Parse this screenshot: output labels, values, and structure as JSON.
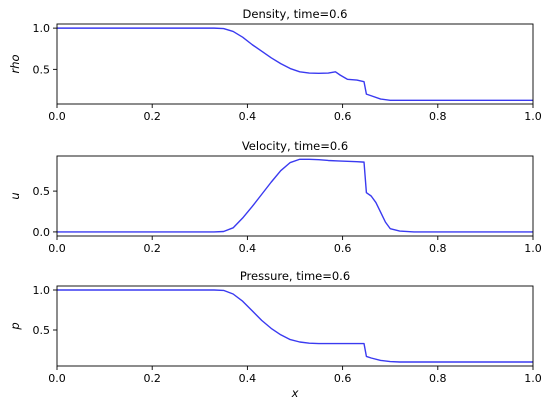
{
  "chart_data": [
    {
      "type": "line",
      "title": "Density, time=0.6",
      "xlabel": "",
      "ylabel": "rho",
      "xlim": [
        0,
        1
      ],
      "ylim": [
        0.08,
        1.05
      ],
      "xticks": [
        "0.0",
        "0.2",
        "0.4",
        "0.6",
        "0.8",
        "1.0"
      ],
      "yticks": [
        "0.5",
        "1.0"
      ],
      "ytick_values": [
        0.5,
        1.0
      ],
      "color": "#3a3af0",
      "series": [
        {
          "x": [
            0.0,
            0.33,
            0.35,
            0.37,
            0.39,
            0.41,
            0.43,
            0.45,
            0.47,
            0.49,
            0.51,
            0.53,
            0.55,
            0.57,
            0.585,
            0.595,
            0.61,
            0.63,
            0.645,
            0.65,
            0.66,
            0.68,
            0.7,
            0.72,
            1.0
          ],
          "y": [
            1.0,
            1.0,
            0.995,
            0.96,
            0.89,
            0.8,
            0.72,
            0.64,
            0.57,
            0.51,
            0.47,
            0.455,
            0.452,
            0.455,
            0.47,
            0.43,
            0.38,
            0.37,
            0.35,
            0.2,
            0.18,
            0.14,
            0.125,
            0.125,
            0.125
          ]
        }
      ]
    },
    {
      "type": "line",
      "title": "Velocity, time=0.6",
      "xlabel": "",
      "ylabel": "u",
      "xlim": [
        0,
        1
      ],
      "ylim": [
        -0.05,
        0.93
      ],
      "xticks": [
        "0.0",
        "0.2",
        "0.4",
        "0.6",
        "0.8",
        "1.0"
      ],
      "yticks": [
        "0.0",
        "0.5"
      ],
      "ytick_values": [
        0.0,
        0.5
      ],
      "color": "#3a3af0",
      "series": [
        {
          "x": [
            0.0,
            0.33,
            0.35,
            0.37,
            0.39,
            0.41,
            0.43,
            0.45,
            0.47,
            0.49,
            0.51,
            0.53,
            0.55,
            0.57,
            0.59,
            0.61,
            0.63,
            0.645,
            0.65,
            0.66,
            0.67,
            0.68,
            0.69,
            0.7,
            0.72,
            0.75,
            1.0
          ],
          "y": [
            0.0,
            0.0,
            0.005,
            0.05,
            0.17,
            0.31,
            0.46,
            0.61,
            0.75,
            0.85,
            0.89,
            0.89,
            0.885,
            0.875,
            0.87,
            0.865,
            0.86,
            0.855,
            0.48,
            0.44,
            0.36,
            0.24,
            0.12,
            0.04,
            0.01,
            0.0,
            0.0
          ]
        }
      ]
    },
    {
      "type": "line",
      "title": "Pressure, time=0.6",
      "xlabel": "x",
      "ylabel": "p",
      "xlim": [
        0,
        1
      ],
      "ylim": [
        0.05,
        1.05
      ],
      "xticks": [
        "0.0",
        "0.2",
        "0.4",
        "0.6",
        "0.8",
        "1.0"
      ],
      "yticks": [
        "0.5",
        "1.0"
      ],
      "ytick_values": [
        0.5,
        1.0
      ],
      "color": "#3a3af0",
      "series": [
        {
          "x": [
            0.0,
            0.33,
            0.35,
            0.37,
            0.39,
            0.41,
            0.43,
            0.45,
            0.47,
            0.49,
            0.51,
            0.53,
            0.55,
            0.57,
            0.59,
            0.61,
            0.63,
            0.645,
            0.65,
            0.66,
            0.68,
            0.7,
            0.72,
            1.0
          ],
          "y": [
            1.0,
            1.0,
            0.995,
            0.95,
            0.86,
            0.74,
            0.62,
            0.52,
            0.44,
            0.38,
            0.35,
            0.335,
            0.33,
            0.33,
            0.33,
            0.33,
            0.33,
            0.33,
            0.17,
            0.15,
            0.12,
            0.105,
            0.1,
            0.1
          ]
        }
      ]
    }
  ]
}
